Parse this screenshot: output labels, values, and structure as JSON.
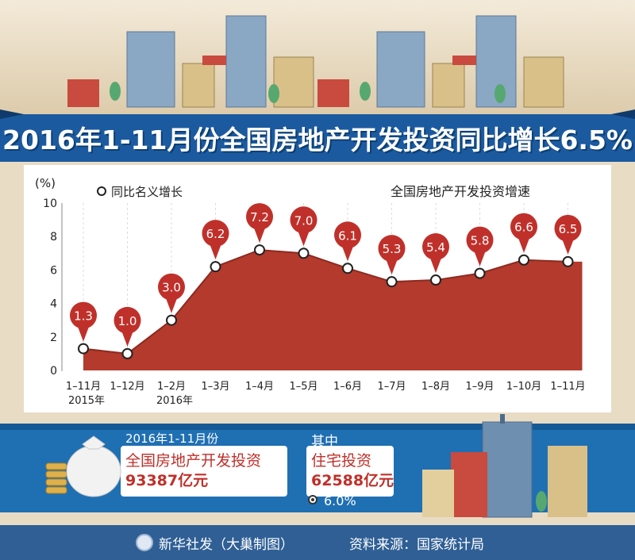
{
  "title": "2016年1-11月份全国房地产开发投资同比增长6.5%",
  "chart_data": {
    "type": "area",
    "title": "全国房地产开发投资增速",
    "ylabel": "(%)",
    "legend": "同比名义增长",
    "legend_position": "top-left",
    "ylim": [
      0,
      10
    ],
    "yticks": [
      "0",
      "2",
      "4",
      "6",
      "8",
      "10"
    ],
    "categories": [
      "1–11月",
      "1–12月",
      "1–2月",
      "1–3月",
      "1–4月",
      "1–5月",
      "1–6月",
      "1–7月",
      "1–8月",
      "1–9月",
      "1–10月",
      "1–11月"
    ],
    "year_labels": [
      "2015年",
      "",
      "2016年",
      "",
      "",
      "",
      "",
      "",
      "",
      "",
      "",
      ""
    ],
    "values": [
      1.3,
      1.0,
      3.0,
      6.2,
      7.2,
      7.0,
      6.1,
      5.3,
      5.4,
      5.8,
      6.6,
      6.5
    ],
    "value_labels": [
      "1.3",
      "1.0",
      "3.0",
      "6.2",
      "7.2",
      "7.0",
      "6.1",
      "5.3",
      "5.4",
      "5.8",
      "6.6",
      "6.5"
    ],
    "colors": {
      "area": "#b33a2c",
      "marker": "#ffffff",
      "pin": "#c0302a"
    }
  },
  "summary": {
    "period": "2016年1-11月份",
    "investment_label": "全国房地产开发投资",
    "investment_value": "93387亿元",
    "sub_label": "其中",
    "residential_label": "住宅投资",
    "residential_value": "62588亿元",
    "residential_growth": "6.0%"
  },
  "footer": {
    "agency": "新华社发（大巢制图）",
    "source": "资料来源：国家统计局"
  },
  "colors": {
    "band": "#1f6fb3",
    "title_band": "#1c5aa0",
    "footer": "#2f5f95",
    "accent": "#c0302a"
  }
}
